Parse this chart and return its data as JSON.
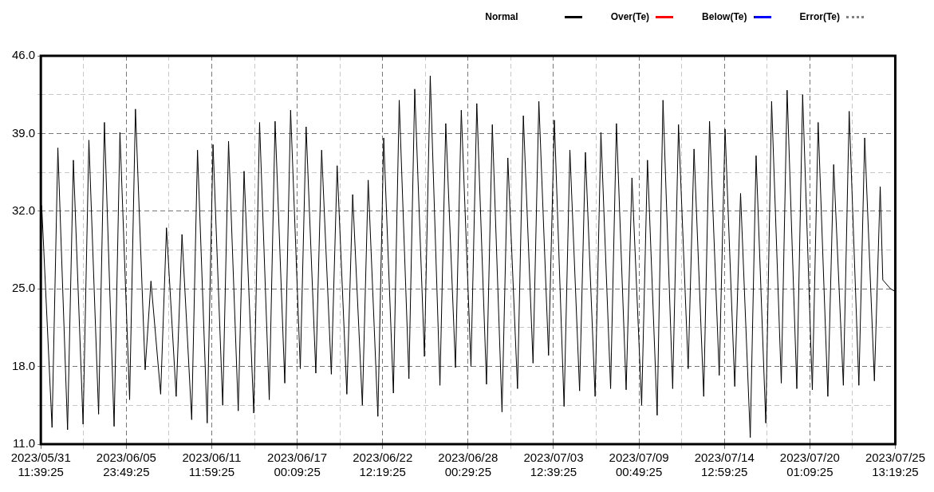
{
  "chart_data": {
    "type": "line",
    "legend": "top right",
    "grid": true,
    "marker": "none",
    "line_style": "solid",
    "xlim": [
      "2023-05-31T11:39",
      "2023-07-25T13:19"
    ],
    "xticks": [
      {
        "value": "2023-05-31T11:39",
        "label": "2023/05/31 11:39:25"
      },
      {
        "value": "2023-06-03T05:44",
        "label": null
      },
      {
        "value": "2023-06-05T23:49",
        "label": "2023/06/05 23:49:25"
      },
      {
        "value": "2023-06-08T17:54",
        "label": null
      },
      {
        "value": "2023-06-11T11:59",
        "label": "2023/06/11 11:59:25"
      },
      {
        "value": "2023-06-14T06:04",
        "label": null
      },
      {
        "value": "2023-06-17T00:09",
        "label": "2023/06/17 00:09:25"
      },
      {
        "value": "2023-06-19T18:14",
        "label": null
      },
      {
        "value": "2023-06-22T12:19",
        "label": "2023/06/22 12:19:25"
      },
      {
        "value": "2023-06-25T06:24",
        "label": null
      },
      {
        "value": "2023-06-28T00:29",
        "label": "2023/06/28 00:29:25"
      },
      {
        "value": "2023-06-30T18:34",
        "label": null
      },
      {
        "value": "2023-07-03T12:39",
        "label": "2023/07/03 12:39:25"
      },
      {
        "value": "2023-07-06T06:44",
        "label": null
      },
      {
        "value": "2023-07-09T00:49",
        "label": "2023/07/09 00:49:25"
      },
      {
        "value": "2023-07-11T18:54",
        "label": null
      },
      {
        "value": "2023-07-14T12:59",
        "label": "2023/07/14 12:59:25"
      },
      {
        "value": "2023-07-17T07:04",
        "label": null
      },
      {
        "value": "2023-07-20T01:09",
        "label": "2023/07/20 01:09:25"
      },
      {
        "value": "2023-07-22T19:14",
        "label": null
      },
      {
        "value": "2023-07-25T13:19",
        "label": "2023/07/25 13:19:25"
      }
    ],
    "ylim": [
      11,
      46
    ],
    "yticks": [
      {
        "value": 11,
        "label": "11.0"
      },
      {
        "value": 14.5,
        "label": null
      },
      {
        "value": 18,
        "label": "18.0"
      },
      {
        "value": 21.5,
        "label": null
      },
      {
        "value": 25,
        "label": "25.0"
      },
      {
        "value": 28.5,
        "label": null
      },
      {
        "value": 32,
        "label": "32.0"
      },
      {
        "value": 35.5,
        "label": null
      },
      {
        "value": 39,
        "label": "39.0"
      },
      {
        "value": 42.5,
        "label": null
      },
      {
        "value": 46,
        "label": "46.0"
      }
    ],
    "x": [
      "2023-05-31T11:39",
      "2023-05-31T13:00",
      "2023-06-01T05:00",
      "2023-06-01T14:00",
      "2023-06-02T05:00",
      "2023-06-02T14:00",
      "2023-06-03T05:00",
      "2023-06-03T14:00",
      "2023-06-04T05:00",
      "2023-06-04T14:00",
      "2023-06-05T05:00",
      "2023-06-05T14:00",
      "2023-06-06T05:00",
      "2023-06-06T14:00",
      "2023-06-07T05:00",
      "2023-06-07T14:00",
      "2023-06-08T05:00",
      "2023-06-08T14:00",
      "2023-06-09T05:00",
      "2023-06-09T14:00",
      "2023-06-10T05:00",
      "2023-06-10T14:00",
      "2023-06-11T05:00",
      "2023-06-11T14:00",
      "2023-06-12T05:00",
      "2023-06-12T14:00",
      "2023-06-13T05:00",
      "2023-06-13T14:00",
      "2023-06-14T05:00",
      "2023-06-14T14:00",
      "2023-06-15T05:00",
      "2023-06-15T14:00",
      "2023-06-16T05:00",
      "2023-06-16T14:00",
      "2023-06-17T05:00",
      "2023-06-17T14:00",
      "2023-06-18T05:00",
      "2023-06-18T14:00",
      "2023-06-19T05:00",
      "2023-06-19T14:00",
      "2023-06-20T05:00",
      "2023-06-20T14:00",
      "2023-06-21T05:00",
      "2023-06-21T14:00",
      "2023-06-22T05:00",
      "2023-06-22T14:00",
      "2023-06-23T05:00",
      "2023-06-23T14:00",
      "2023-06-24T05:00",
      "2023-06-24T14:00",
      "2023-06-25T05:00",
      "2023-06-25T14:00",
      "2023-06-26T05:00",
      "2023-06-26T14:00",
      "2023-06-27T05:00",
      "2023-06-27T14:00",
      "2023-06-28T05:00",
      "2023-06-28T14:00",
      "2023-06-29T05:00",
      "2023-06-29T14:00",
      "2023-06-30T05:00",
      "2023-06-30T14:00",
      "2023-07-01T05:00",
      "2023-07-01T14:00",
      "2023-07-02T05:00",
      "2023-07-02T14:00",
      "2023-07-03T05:00",
      "2023-07-03T14:00",
      "2023-07-04T05:00",
      "2023-07-04T14:00",
      "2023-07-05T05:00",
      "2023-07-05T14:00",
      "2023-07-06T05:00",
      "2023-07-06T14:00",
      "2023-07-07T05:00",
      "2023-07-07T14:00",
      "2023-07-08T05:00",
      "2023-07-08T14:00",
      "2023-07-09T05:00",
      "2023-07-09T14:00",
      "2023-07-10T05:00",
      "2023-07-10T14:00",
      "2023-07-11T05:00",
      "2023-07-11T14:00",
      "2023-07-12T05:00",
      "2023-07-12T14:00",
      "2023-07-13T05:00",
      "2023-07-13T14:00",
      "2023-07-14T05:00",
      "2023-07-14T14:00",
      "2023-07-15T05:00",
      "2023-07-15T14:00",
      "2023-07-16T05:00",
      "2023-07-16T14:00",
      "2023-07-17T05:00",
      "2023-07-17T14:00",
      "2023-07-18T05:00",
      "2023-07-18T14:00",
      "2023-07-19T05:00",
      "2023-07-19T14:00",
      "2023-07-20T05:00",
      "2023-07-20T14:00",
      "2023-07-21T05:00",
      "2023-07-21T14:00",
      "2023-07-22T05:00",
      "2023-07-22T14:00",
      "2023-07-23T05:00",
      "2023-07-23T14:00",
      "2023-07-24T05:00",
      "2023-07-24T14:00",
      "2023-07-24T18:00",
      "2023-07-25T06:00",
      "2023-07-25T12:00",
      "2023-07-25T13:19"
    ],
    "series": [
      {
        "name": "Normal",
        "color": "#000000",
        "values": [
          28,
          32.5,
          12.5,
          37.7,
          12.3,
          36.6,
          12.8,
          38.4,
          13.7,
          40,
          12.6,
          39.1,
          15,
          41.2,
          17.7,
          25.7,
          15.5,
          30.5,
          15.3,
          29.9,
          13.2,
          37.5,
          12.9,
          38,
          14.5,
          38.3,
          14,
          35.6,
          13.8,
          40,
          15,
          40.1,
          16.5,
          41.1,
          17.8,
          39.6,
          17.4,
          37.5,
          17.3,
          36.1,
          15.5,
          33.5,
          14.5,
          34.8,
          13.5,
          38.6,
          15.6,
          42,
          16.9,
          43,
          18.9,
          44.2,
          16.3,
          39.9,
          17.9,
          41.1,
          18,
          41.7,
          16.4,
          39.8,
          13.9,
          36.8,
          16,
          40.6,
          18.3,
          41.9,
          19,
          40.2,
          14.4,
          37.5,
          15.8,
          37.3,
          15.3,
          39.1,
          16,
          39.9,
          15.9,
          35,
          14.5,
          36.6,
          13.6,
          42,
          16,
          39.8,
          17.8,
          37.6,
          15.3,
          40.1,
          17.2,
          39.4,
          16.2,
          33.6,
          11.6,
          37,
          12.9,
          41.9,
          16.5,
          42.9,
          16,
          42.5,
          15.9,
          40,
          15.3,
          36.2,
          16.3,
          41,
          16.3,
          38.6,
          16.7,
          34.2,
          25.8,
          25,
          24.8,
          28
        ]
      },
      {
        "name": "Over(Te)",
        "color": "#ff0000",
        "values": [
          null,
          null,
          null,
          null,
          null,
          null,
          null,
          null,
          null,
          null,
          null,
          null,
          null,
          null,
          null,
          null,
          null,
          null,
          null,
          null,
          null,
          null,
          null,
          null,
          null,
          null,
          null,
          null,
          null,
          null,
          null,
          null,
          null,
          null,
          null,
          null,
          null,
          null,
          null,
          null,
          null,
          null,
          null,
          null,
          null,
          null,
          null,
          null,
          null,
          null,
          null,
          null,
          null,
          null,
          null,
          null,
          null,
          null,
          null,
          null,
          null,
          null,
          null,
          null,
          null,
          null,
          null,
          null,
          null,
          null,
          null,
          null,
          null,
          null,
          null,
          null,
          null,
          null,
          null,
          null,
          null,
          null,
          null,
          null,
          null,
          null,
          null,
          null,
          null,
          null,
          null,
          null,
          null,
          null,
          null,
          null,
          null,
          null,
          null,
          null,
          null,
          null,
          null,
          null,
          null,
          null,
          null,
          null,
          null,
          null,
          null,
          null,
          null,
          null
        ]
      },
      {
        "name": "Below(Te)",
        "color": "#0000ff",
        "values": [
          null,
          null,
          null,
          null,
          null,
          null,
          null,
          null,
          null,
          null,
          null,
          null,
          null,
          null,
          null,
          null,
          null,
          null,
          null,
          null,
          null,
          null,
          null,
          null,
          null,
          null,
          null,
          null,
          null,
          null,
          null,
          null,
          null,
          null,
          null,
          null,
          null,
          null,
          null,
          null,
          null,
          null,
          null,
          null,
          null,
          null,
          null,
          null,
          null,
          null,
          null,
          null,
          null,
          null,
          null,
          null,
          null,
          null,
          null,
          null,
          null,
          null,
          null,
          null,
          null,
          null,
          null,
          null,
          null,
          null,
          null,
          null,
          null,
          null,
          null,
          null,
          null,
          null,
          null,
          null,
          null,
          null,
          null,
          null,
          null,
          null,
          null,
          null,
          null,
          null,
          null,
          null,
          null,
          null,
          null,
          null,
          null,
          null,
          null,
          null,
          null,
          null,
          null,
          null,
          null,
          null,
          null,
          null,
          null,
          null,
          null,
          null,
          null,
          null
        ]
      },
      {
        "name": "Error(Te)",
        "color": "#808080",
        "line_style": "dotted",
        "values": [
          null,
          null,
          null,
          null,
          null,
          null,
          null,
          null,
          null,
          null,
          null,
          null,
          null,
          null,
          null,
          null,
          null,
          null,
          null,
          null,
          null,
          null,
          null,
          null,
          null,
          null,
          null,
          null,
          null,
          null,
          null,
          null,
          null,
          null,
          null,
          null,
          null,
          null,
          null,
          null,
          null,
          null,
          null,
          null,
          null,
          null,
          null,
          null,
          null,
          null,
          null,
          null,
          null,
          null,
          null,
          null,
          null,
          null,
          null,
          null,
          null,
          null,
          null,
          null,
          null,
          null,
          null,
          null,
          null,
          null,
          null,
          null,
          null,
          null,
          null,
          null,
          null,
          null,
          null,
          null,
          null,
          null,
          null,
          null,
          null,
          null,
          null,
          null,
          null,
          null,
          null,
          null,
          null,
          null,
          null,
          null,
          null,
          null,
          null,
          null,
          null,
          null,
          null,
          null,
          null,
          null,
          null,
          null,
          null,
          null,
          null,
          null,
          null,
          null
        ]
      }
    ]
  }
}
